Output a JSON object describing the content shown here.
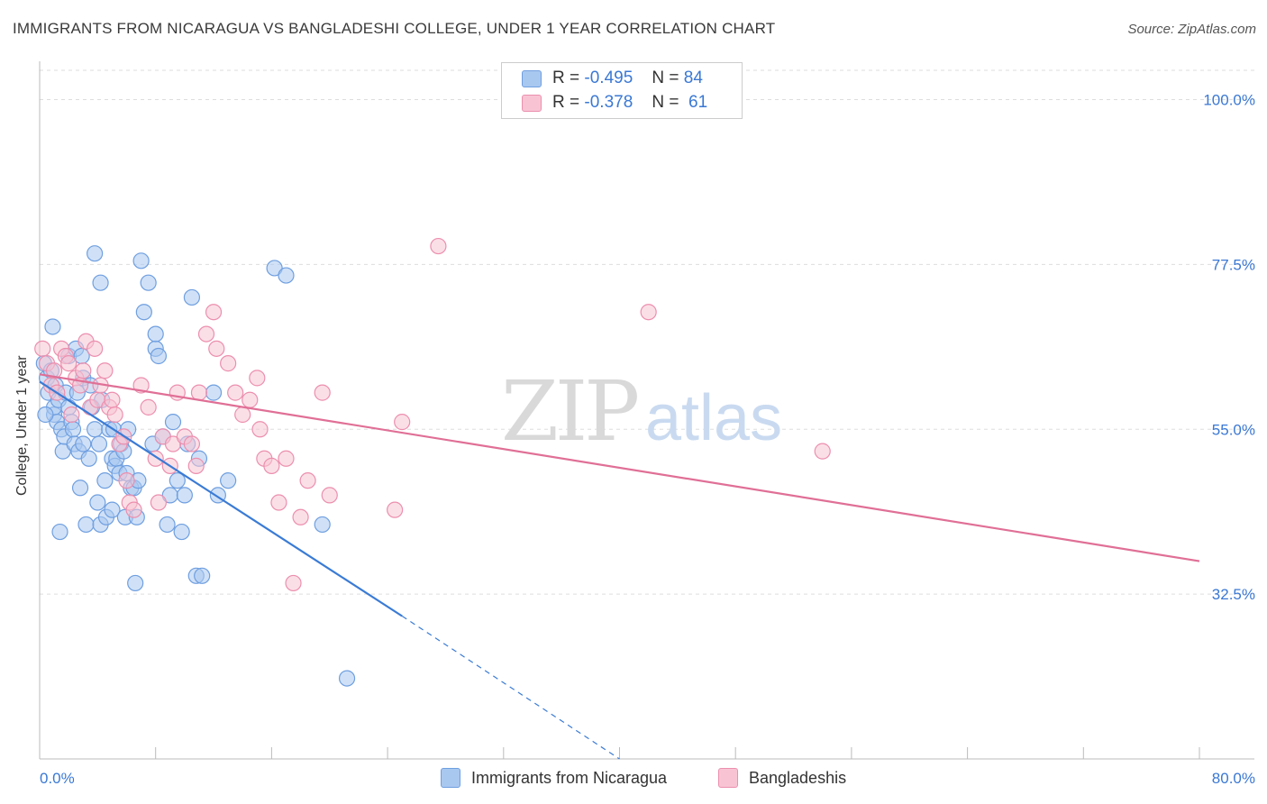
{
  "title": "IMMIGRANTS FROM NICARAGUA VS BANGLADESHI COLLEGE, UNDER 1 YEAR CORRELATION CHART",
  "source": "Source: ZipAtlas.com",
  "watermark": {
    "zip": "ZIP",
    "atlas": "atlas"
  },
  "legend_top": [
    {
      "r_label": "R =",
      "r_value": "-0.495",
      "n_label": "N =",
      "n_value": "84",
      "color": "#a9c8f0",
      "border": "#6f9fe0"
    },
    {
      "r_label": "R =",
      "r_value": "-0.378",
      "n_label": "N =",
      "n_value": " 61",
      "color": "#f8c4d4",
      "border": "#ec8fae"
    }
  ],
  "legend_bottom": [
    "Immigrants from Nicaragua",
    "Bangladeshis"
  ],
  "chart_data": {
    "type": "scatter",
    "title": "IMMIGRANTS FROM NICARAGUA VS BANGLADESHI COLLEGE, UNDER 1 YEAR CORRELATION CHART",
    "xlabel": "",
    "ylabel": "College, Under 1 year",
    "xlim": [
      0,
      80
    ],
    "ylim": [
      10,
      104
    ],
    "x_tick_labels": [
      "0.0%",
      "80.0%"
    ],
    "y_ticks": [
      32.5,
      55.0,
      77.5,
      100.0
    ],
    "y_tick_labels": [
      "32.5%",
      "55.0%",
      "77.5%",
      "100.0%"
    ],
    "grid": true,
    "series": [
      {
        "name": "Immigrants from Nicaragua",
        "color": "#6f9fe0",
        "fill": "#a9c8f0",
        "line_color": "#3a7bd5",
        "trend": {
          "x0": 0,
          "y0": 61.5,
          "x1": 25,
          "y1": 29.5,
          "dash_x1": 40,
          "dash_y1": 10
        },
        "x": [
          0.3,
          0.5,
          0.6,
          0.8,
          1.0,
          1.0,
          1.1,
          1.2,
          1.3,
          1.5,
          1.6,
          1.7,
          1.8,
          2.0,
          2.0,
          2.2,
          2.3,
          2.4,
          2.5,
          2.6,
          2.7,
          2.8,
          3.0,
          3.0,
          3.2,
          3.4,
          3.5,
          3.6,
          3.8,
          4.0,
          4.1,
          4.2,
          4.3,
          4.5,
          4.6,
          4.8,
          5.0,
          5.0,
          5.1,
          5.2,
          5.3,
          5.5,
          5.6,
          5.8,
          5.9,
          6.0,
          6.1,
          6.3,
          6.5,
          6.6,
          6.8,
          7.0,
          7.2,
          7.5,
          7.8,
          8.0,
          8.0,
          8.2,
          8.5,
          8.8,
          9.0,
          9.2,
          9.5,
          9.8,
          10.0,
          10.2,
          10.5,
          10.8,
          11.0,
          11.2,
          12.0,
          12.3,
          13.0,
          16.2,
          17.0,
          19.5,
          21.2,
          6.7,
          4.2,
          3.8,
          2.9,
          1.4,
          0.9,
          0.4
        ],
        "y": [
          64,
          62,
          60,
          63,
          57,
          58,
          61,
          56,
          59,
          55,
          52,
          54,
          60,
          65,
          58,
          56,
          55,
          53,
          66,
          60,
          52,
          47,
          62,
          53,
          42,
          51,
          61,
          58,
          55,
          45,
          53,
          42,
          59,
          48,
          43,
          55,
          51,
          44,
          55,
          50,
          51,
          49,
          53,
          52,
          43,
          49,
          55,
          47,
          47,
          34,
          48,
          78,
          71,
          75,
          53,
          66,
          68,
          65,
          54,
          42,
          46,
          56,
          48,
          41,
          46,
          53,
          73,
          35,
          51,
          35,
          60,
          46,
          48,
          77,
          76,
          42,
          21,
          43,
          75,
          79,
          65,
          41,
          69,
          57
        ]
      },
      {
        "name": "Bangladeshis",
        "color": "#ec8fae",
        "fill": "#f8c4d4",
        "line_color": "#e06f96",
        "trend": {
          "x0": 0,
          "y0": 62.5,
          "x1": 80,
          "y1": 37.0
        },
        "x": [
          0.2,
          0.5,
          0.8,
          1.0,
          1.2,
          1.5,
          1.8,
          2.0,
          2.2,
          2.5,
          2.8,
          3.0,
          3.2,
          3.5,
          3.8,
          4.0,
          4.2,
          4.5,
          4.8,
          5.0,
          5.2,
          5.5,
          5.8,
          6.0,
          6.2,
          6.5,
          7.0,
          7.5,
          8.0,
          8.2,
          8.5,
          9.0,
          9.2,
          9.5,
          10.0,
          10.5,
          10.8,
          11.0,
          11.5,
          12.0,
          12.2,
          13.0,
          13.5,
          14.0,
          14.5,
          15.0,
          15.2,
          15.5,
          16.0,
          16.5,
          17.0,
          17.5,
          18.0,
          18.5,
          19.5,
          20.0,
          24.5,
          25.0,
          27.5,
          42.0,
          54.0
        ],
        "y": [
          66,
          64,
          61,
          63,
          60,
          66,
          65,
          64,
          57,
          62,
          61,
          63,
          67,
          58,
          66,
          59,
          61,
          63,
          58,
          59,
          57,
          53,
          54,
          48,
          45,
          44,
          61,
          58,
          51,
          45,
          54,
          50,
          53,
          60,
          54,
          53,
          50,
          60,
          68,
          71,
          66,
          64,
          60,
          57,
          59,
          62,
          55,
          51,
          50,
          45,
          51,
          34,
          43,
          48,
          60,
          46,
          44,
          56,
          80,
          71,
          52
        ]
      }
    ]
  }
}
